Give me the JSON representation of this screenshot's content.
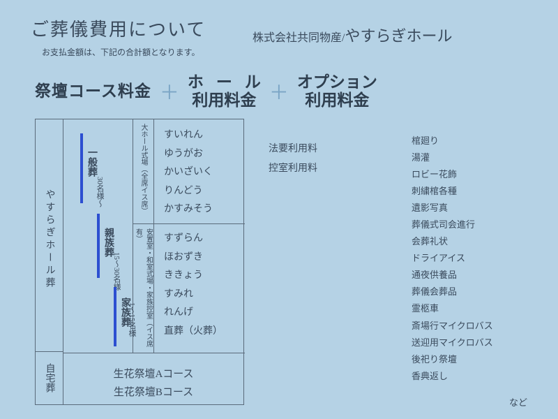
{
  "header": {
    "title": "ご葬儀費用について",
    "subtitle": "お支払金額は、下記の合計額となります。",
    "company_prefix": "株式会社共同物産/",
    "company_name": "やすらぎホール"
  },
  "costs": {
    "c1": "祭壇コース料金",
    "c2_row1": "ホール",
    "c2_row2": "利用料金",
    "c3_row1": "オプション",
    "c3_row2": "利用料金",
    "plus": "＋"
  },
  "table": {
    "hall_name": "やすらぎホール葬",
    "home_name": "自宅葬",
    "types": {
      "t1": "一般葬",
      "t2": "親族葬",
      "t3": "家族葬"
    },
    "counts": {
      "n1": "30名様～",
      "n2": "15～30名様",
      "n3": "1～15名様"
    },
    "venue_top": "大ホール式場（全席イス席）",
    "venue_bot": "安置室・和室式場・家族控室（イス席有）",
    "plans_top": [
      "すいれん",
      "ゆうがお",
      "かいざいく",
      "りんどう",
      "かすみそう"
    ],
    "plans_bot": [
      "すずらん",
      "ほおずき",
      "ききょう",
      "すみれ",
      "れんげ",
      "直葬（火葬）"
    ],
    "home_a": "生花祭壇Aコース",
    "home_b": "生花祭壇Bコース"
  },
  "hall_fees": [
    "法要利用料",
    "控室利用料"
  ],
  "options": [
    "棺廻り",
    "湯灌",
    "ロビー花飾",
    "刺繍棺各種",
    "遺影写真",
    "葬儀式司会進行",
    "会葬礼状",
    "ドライアイス",
    "通夜供養品",
    "葬儀会葬品",
    "霊柩車",
    "斎場行マイクロバス",
    "送迎用マイクロバス",
    "後祀り祭壇",
    "香典返し"
  ],
  "etc": "など",
  "colors": {
    "background": "#b5d2e5",
    "text": "#3a4a5c",
    "plus": "#7aa5c5",
    "bar": "#2c4fd1",
    "border": "#5a6a7a"
  }
}
